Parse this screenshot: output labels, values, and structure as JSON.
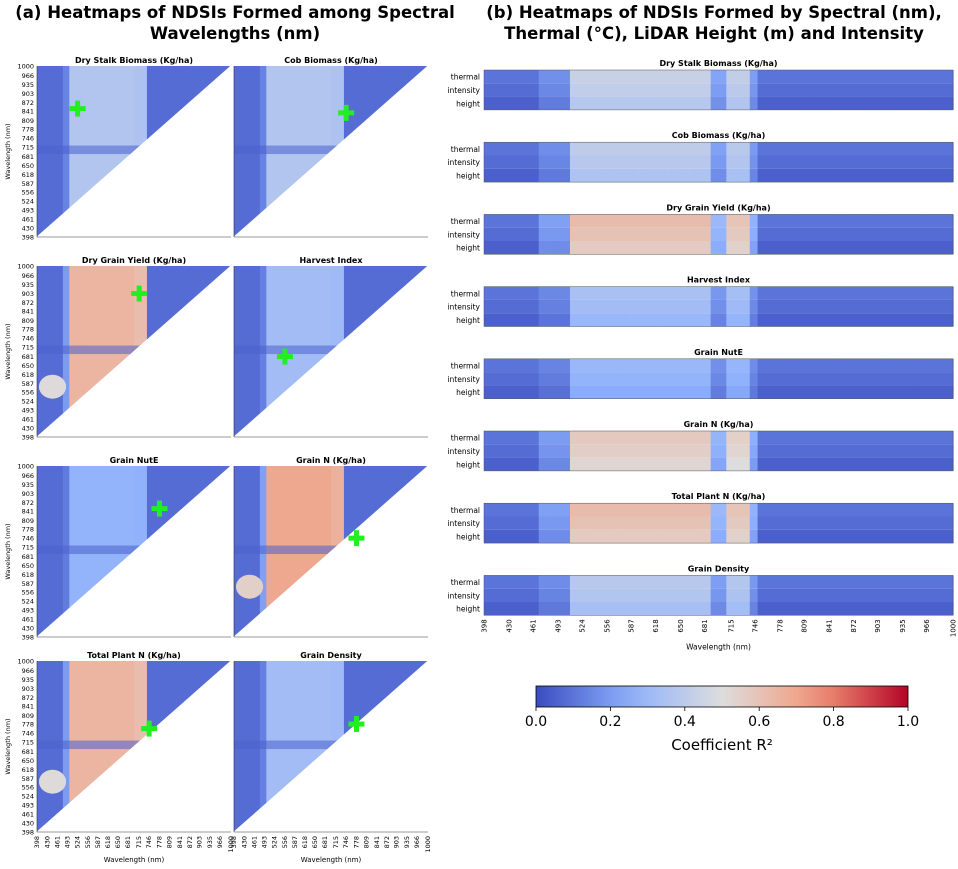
{
  "section_a": {
    "title_line1": "(a) Heatmaps of NDSIs Formed among Spectral",
    "title_line2": "Wavelengths (nm)"
  },
  "section_b": {
    "title_line1": "(b) Heatmaps of NDSIs Formed by Spectral (nm),",
    "title_line2": "Thermal (°C), LiDAR Height (m) and Intensity"
  },
  "colors": {
    "low": "#3a4cc0",
    "mid_low": "#8db0fe",
    "mid": "#dddddd",
    "mid_high": "#f49a7b",
    "high": "#b40426",
    "marker": "#22ee22"
  },
  "chart_data": [
    {
      "type": "heatmap",
      "group": "a",
      "description_units": "Coefficient R^2",
      "xlabel": "Wavelength (nm)",
      "ylabel": "Wavelength (nm)",
      "xlim": [
        398,
        1000
      ],
      "ylim": [
        398,
        1000
      ],
      "ticks": [
        "398",
        "430",
        "461",
        "493",
        "524",
        "556",
        "587",
        "618",
        "650",
        "681",
        "715",
        "746",
        "778",
        "809",
        "841",
        "872",
        "903",
        "935",
        "966",
        "1000"
      ],
      "panels": [
        {
          "title": "Dry Stalk Biomass (Kg/ha)",
          "best_x": 524,
          "best_y": 850,
          "peak_r2": 0.3
        },
        {
          "title": "Cob Biomass (Kg/ha)",
          "best_x": 746,
          "best_y": 835,
          "peak_r2": 0.3
        },
        {
          "title": "Dry Grain Yield (Kg/ha)",
          "best_x": 715,
          "best_y": 903,
          "peak_r2": 0.6
        },
        {
          "title": "Harvest Index",
          "best_x": 556,
          "best_y": 681,
          "peak_r2": 0.25
        },
        {
          "title": "Grain NutE",
          "best_x": 778,
          "best_y": 850,
          "peak_r2": 0.2
        },
        {
          "title": "Grain N (Kg/ha)",
          "best_x": 778,
          "best_y": 746,
          "peak_r2": 0.65
        },
        {
          "title": "Total Plant N (Kg/ha)",
          "best_x": 746,
          "best_y": 762,
          "peak_r2": 0.6
        },
        {
          "title": "Grain Density",
          "best_x": 778,
          "best_y": 778,
          "peak_r2": 0.25
        }
      ]
    },
    {
      "type": "heatmap",
      "group": "b",
      "xlabel": "Wavelength (nm)",
      "ticks": [
        "398",
        "430",
        "461",
        "493",
        "524",
        "556",
        "587",
        "618",
        "650",
        "681",
        "715",
        "746",
        "778",
        "809",
        "841",
        "872",
        "903",
        "935",
        "966",
        "1000"
      ],
      "xlim": [
        398,
        1000
      ],
      "rows": [
        "thermal",
        "intensity",
        "height"
      ],
      "panels": [
        {
          "title": "Dry Stalk Biomass (Kg/ha)",
          "peak_r2": 0.35
        },
        {
          "title": "Cob Biomass (Kg/ha)",
          "peak_r2": 0.32
        },
        {
          "title": "Dry Grain Yield (Kg/ha)",
          "peak_r2": 0.55
        },
        {
          "title": "Harvest Index",
          "peak_r2": 0.25
        },
        {
          "title": "Grain NutE",
          "peak_r2": 0.2
        },
        {
          "title": "Grain N (Kg/ha)",
          "peak_r2": 0.5
        },
        {
          "title": "Total Plant N (Kg/ha)",
          "peak_r2": 0.55
        },
        {
          "title": "Grain Density",
          "peak_r2": 0.3
        }
      ]
    },
    {
      "type": "colorbar",
      "label": "Coefficient R²",
      "range": [
        0.0,
        1.0
      ],
      "ticks": [
        "0.0",
        "0.2",
        "0.4",
        "0.6",
        "0.8",
        "1.0"
      ]
    }
  ]
}
